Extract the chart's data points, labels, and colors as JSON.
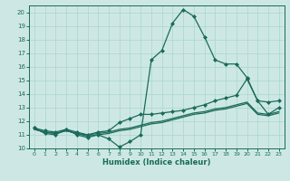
{
  "xlabel": "Humidex (Indice chaleur)",
  "ylabel": "",
  "xlim": [
    -0.5,
    23.5
  ],
  "ylim": [
    10,
    20.5
  ],
  "yticks": [
    10,
    11,
    12,
    13,
    14,
    15,
    16,
    17,
    18,
    19,
    20
  ],
  "xticks": [
    0,
    1,
    2,
    3,
    4,
    5,
    6,
    7,
    8,
    9,
    10,
    11,
    12,
    13,
    14,
    15,
    16,
    17,
    18,
    19,
    20,
    21,
    22,
    23
  ],
  "bg_color": "#cde8e4",
  "grid_color": "#b0d8d2",
  "line_color": "#1a6b5a",
  "series": [
    {
      "x": [
        0,
        1,
        2,
        3,
        4,
        5,
        6,
        7,
        8,
        9,
        10,
        11,
        12,
        13,
        14,
        15,
        16,
        17,
        18,
        19,
        20,
        21,
        22,
        23
      ],
      "y": [
        11.5,
        11.1,
        11.0,
        11.4,
        11.0,
        10.8,
        11.0,
        10.7,
        10.1,
        10.5,
        11.0,
        16.5,
        17.2,
        19.2,
        20.2,
        19.7,
        18.2,
        16.5,
        16.2,
        16.2,
        15.2,
        13.5,
        12.5,
        13.0
      ],
      "marker": "D",
      "markersize": 2.0,
      "linewidth": 0.9
    },
    {
      "x": [
        0,
        1,
        2,
        3,
        4,
        5,
        6,
        7,
        8,
        9,
        10,
        11,
        12,
        13,
        14,
        15,
        16,
        17,
        18,
        19,
        20,
        21,
        22,
        23
      ],
      "y": [
        11.5,
        11.3,
        11.2,
        11.4,
        11.2,
        11.0,
        11.2,
        11.3,
        11.9,
        12.2,
        12.5,
        12.5,
        12.6,
        12.7,
        12.8,
        13.0,
        13.2,
        13.5,
        13.7,
        13.9,
        15.1,
        13.5,
        13.4,
        13.5
      ],
      "marker": "D",
      "markersize": 2.0,
      "linewidth": 0.9
    },
    {
      "x": [
        0,
        1,
        2,
        3,
        4,
        5,
        6,
        7,
        8,
        9,
        10,
        11,
        12,
        13,
        14,
        15,
        16,
        17,
        18,
        19,
        20,
        21,
        22,
        23
      ],
      "y": [
        11.4,
        11.2,
        11.1,
        11.3,
        11.1,
        11.0,
        11.1,
        11.2,
        11.4,
        11.5,
        11.7,
        11.9,
        12.0,
        12.2,
        12.4,
        12.6,
        12.7,
        12.9,
        13.0,
        13.2,
        13.4,
        12.6,
        12.5,
        12.7
      ],
      "marker": null,
      "markersize": 0,
      "linewidth": 0.9
    },
    {
      "x": [
        0,
        1,
        2,
        3,
        4,
        5,
        6,
        7,
        8,
        9,
        10,
        11,
        12,
        13,
        14,
        15,
        16,
        17,
        18,
        19,
        20,
        21,
        22,
        23
      ],
      "y": [
        11.4,
        11.2,
        11.1,
        11.3,
        11.1,
        10.9,
        11.0,
        11.1,
        11.3,
        11.4,
        11.6,
        11.8,
        11.9,
        12.1,
        12.3,
        12.5,
        12.6,
        12.8,
        12.9,
        13.1,
        13.3,
        12.5,
        12.4,
        12.6
      ],
      "marker": null,
      "markersize": 0,
      "linewidth": 0.9
    }
  ]
}
